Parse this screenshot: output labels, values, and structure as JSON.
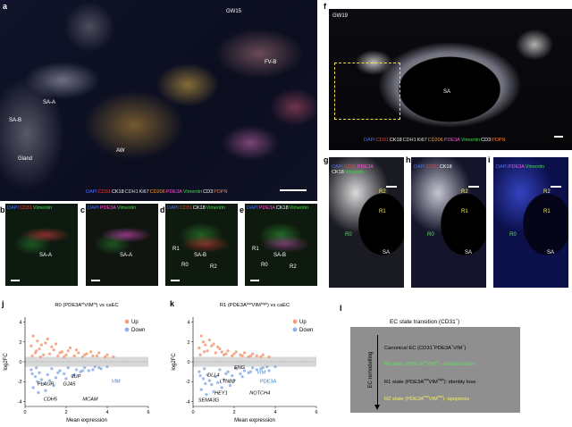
{
  "colors": {
    "dapi": "#4a6cff",
    "cd31": "#ff3b3b",
    "ck18": "#ffffff",
    "cdh1": "#dcdcdc",
    "ki67": "#e0e0e0",
    "cd206": "#ff9a2e",
    "pde3a": "#ff4fd8",
    "vimentin": "#43d94b",
    "cd3": "#ffffff",
    "pdpn": "#ff7a3a",
    "up": "#f2a07b",
    "down": "#8fb0e6",
    "blue_gene": "#3a7bd5",
    "state_box": "#8f8f8f",
    "r0_text": "#5ee35e",
    "r2_text": "#f6f05a"
  },
  "panel_a": {
    "letter": "a",
    "stage": "GW15",
    "labels": [
      "FV-B",
      "SA-A",
      "SA-B",
      "AW",
      "Gland"
    ],
    "legend": [
      {
        "t": "DAPI",
        "c": "dapi"
      },
      {
        "t": "CD31",
        "c": "cd31"
      },
      {
        "t": "CK18",
        "c": "ck18"
      },
      {
        "t": "CDH1",
        "c": "cdh1"
      },
      {
        "t": "Ki67",
        "c": "ki67"
      },
      {
        "t": "CD206",
        "c": "cd206"
      },
      {
        "t": "PDE3A",
        "c": "pde3a"
      },
      {
        "t": "Vimentin",
        "c": "vimentin"
      },
      {
        "t": "CD3",
        "c": "cd3"
      },
      {
        "t": "PDPN",
        "c": "pdpn"
      }
    ]
  },
  "panel_f": {
    "letter": "f",
    "stage": "GW19",
    "label": "SA",
    "legend1": [
      {
        "t": "DAPI",
        "c": "dapi"
      },
      {
        "t": "CD31",
        "c": "cd31"
      },
      {
        "t": "CK18",
        "c": "ck18"
      },
      {
        "t": "CDH1",
        "c": "cdh1"
      },
      {
        "t": "Ki67",
        "c": "ki67"
      },
      {
        "t": "CD206",
        "c": "cd206"
      },
      {
        "t": "PDE3A",
        "c": "pde3a"
      },
      {
        "t": "Vimentin",
        "c": "vimentin"
      },
      {
        "t": "CD3",
        "c": "cd3"
      },
      {
        "t": "PDPN",
        "c": "pdpn"
      }
    ]
  },
  "small_panels": [
    {
      "letter": "b",
      "legend": [
        {
          "t": "DAPI",
          "c": "dapi"
        },
        {
          "t": "CD31",
          "c": "cd31"
        },
        {
          "t": "Vimentin",
          "c": "vimentin"
        }
      ],
      "labels": [
        "SA-A"
      ]
    },
    {
      "letter": "c",
      "legend": [
        {
          "t": "DAPI",
          "c": "dapi"
        },
        {
          "t": "PDE3A",
          "c": "pde3a"
        },
        {
          "t": "Vimentin",
          "c": "vimentin"
        }
      ],
      "labels": [
        "SA-A"
      ]
    },
    {
      "letter": "d",
      "legend": [
        {
          "t": "DAPI",
          "c": "dapi"
        },
        {
          "t": "CD31",
          "c": "cd31"
        },
        {
          "t": "CK18",
          "c": "ck18"
        },
        {
          "t": "Vimentin",
          "c": "vimentin"
        }
      ],
      "labels": [
        "R1",
        "SA-B",
        "R0",
        "R2"
      ]
    },
    {
      "letter": "e",
      "legend": [
        {
          "t": "DAPI",
          "c": "dapi"
        },
        {
          "t": "PDE3A",
          "c": "pde3a"
        },
        {
          "t": "CK18",
          "c": "ck18"
        },
        {
          "t": "Vimentin",
          "c": "vimentin"
        }
      ],
      "labels": [
        "R1",
        "SA-B",
        "R0",
        "R2"
      ]
    }
  ],
  "zoom_panels": [
    {
      "letter": "g",
      "legend": [
        {
          "t": "DAPI",
          "c": "dapi"
        },
        {
          "t": "CD31",
          "c": "cd31"
        },
        {
          "t": "PDE3A",
          "c": "pde3a"
        }
      ],
      "legend2": [
        {
          "t": "CK18",
          "c": "ck18"
        },
        {
          "t": "Vimentin",
          "c": "vimentin"
        }
      ],
      "labels": [
        "R2",
        "R1",
        "R0",
        "SA"
      ]
    },
    {
      "letter": "h",
      "legend": [
        {
          "t": "DAPI",
          "c": "dapi"
        },
        {
          "t": "CD31",
          "c": "cd31"
        },
        {
          "t": "CK18",
          "c": "ck18"
        }
      ],
      "legend2": [],
      "labels": [
        "R2",
        "R1",
        "R0",
        "SA"
      ]
    },
    {
      "letter": "i",
      "legend": [
        {
          "t": "DAPI",
          "c": "dapi"
        },
        {
          "t": "PDE3A",
          "c": "pde3a"
        },
        {
          "t": "Vimentin",
          "c": "vimentin"
        }
      ],
      "legend2": [],
      "labels": [
        "R2",
        "R1",
        "R0",
        "SA"
      ]
    }
  ],
  "chart_data": [
    {
      "type": "scatter",
      "panel": "j",
      "title": "R0 (PDE3A",
      "title_parts": [
        "R0 (PDE3A",
        "hi",
        "VIM",
        "hi",
        ") vs caEC"
      ],
      "xlabel": "Mean expression",
      "ylabel": "log2FC",
      "xlim": [
        0,
        6
      ],
      "ylim": [
        -4.5,
        4.5
      ],
      "xticks": [
        0,
        2,
        4,
        6
      ],
      "yticks": [
        -4,
        -2,
        0,
        2,
        4
      ],
      "legend": [
        "Up",
        "Down"
      ],
      "legend_placement": "top-right",
      "series": [
        {
          "name": "Up",
          "color": "up",
          "points": [
            [
              0.3,
              1.6
            ],
            [
              0.5,
              0.9
            ],
            [
              0.7,
              1.3
            ],
            [
              0.9,
              0.7
            ],
            [
              1.0,
              1.9
            ],
            [
              1.2,
              0.8
            ],
            [
              1.4,
              1.2
            ],
            [
              1.6,
              0.6
            ],
            [
              1.8,
              1.0
            ],
            [
              2.0,
              0.7
            ],
            [
              2.2,
              1.4
            ],
            [
              2.4,
              0.6
            ],
            [
              2.6,
              0.9
            ],
            [
              2.8,
              0.5
            ],
            [
              3.0,
              0.8
            ],
            [
              3.3,
              0.6
            ],
            [
              3.6,
              0.9
            ],
            [
              3.9,
              0.5
            ],
            [
              0.4,
              2.6
            ],
            [
              0.6,
              2.1
            ],
            [
              0.8,
              1.7
            ],
            [
              1.1,
              2.3
            ],
            [
              1.3,
              1.5
            ],
            [
              1.5,
              1.8
            ],
            [
              1.7,
              0.9
            ],
            [
              2.1,
              1.1
            ],
            [
              2.5,
              1.2
            ],
            [
              2.9,
              0.7
            ],
            [
              3.2,
              1.0
            ],
            [
              3.5,
              0.6
            ],
            [
              4.0,
              0.7
            ],
            [
              4.3,
              0.5
            ],
            [
              0.35,
              0.6
            ],
            [
              0.55,
              1.1
            ],
            [
              0.75,
              0.5
            ],
            [
              1.9,
              0.5
            ]
          ]
        },
        {
          "name": "Down",
          "color": "down",
          "points": [
            [
              0.3,
              -0.8
            ],
            [
              0.5,
              -1.5
            ],
            [
              0.7,
              -1.1
            ],
            [
              0.9,
              -2.2
            ],
            [
              1.1,
              -1.3
            ],
            [
              1.3,
              -0.7
            ],
            [
              1.5,
              -1.6
            ],
            [
              1.7,
              -0.9
            ],
            [
              1.9,
              -1.2
            ],
            [
              2.1,
              -0.6
            ],
            [
              2.3,
              -1.4
            ],
            [
              2.5,
              -0.8
            ],
            [
              2.7,
              -1.0
            ],
            [
              2.9,
              -0.6
            ],
            [
              3.1,
              -0.9
            ],
            [
              3.4,
              -0.5
            ],
            [
              3.7,
              -0.7
            ],
            [
              4.0,
              -0.5
            ],
            [
              0.4,
              -2.6
            ],
            [
              0.6,
              -2.0
            ],
            [
              0.8,
              -1.8
            ],
            [
              1.0,
              -2.9
            ],
            [
              1.2,
              -1.9
            ],
            [
              1.4,
              -2.4
            ],
            [
              1.6,
              -1.1
            ],
            [
              2.0,
              -1.7
            ],
            [
              2.4,
              -1.3
            ],
            [
              2.8,
              -0.9
            ],
            [
              3.3,
              -0.8
            ],
            [
              3.6,
              -0.6
            ],
            [
              0.35,
              -1.2
            ],
            [
              0.55,
              -0.6
            ],
            [
              0.65,
              -3.1
            ]
          ]
        }
      ],
      "annotations": [
        {
          "text": "PLAUR",
          "x": 0.6,
          "y": -2.4,
          "color": "#000000"
        },
        {
          "text": "JUP",
          "x": 2.25,
          "y": -1.6,
          "color": "#000000"
        },
        {
          "text": "GJA5",
          "x": 1.85,
          "y": -2.4,
          "color": "#000000"
        },
        {
          "text": "CDH5",
          "x": 0.9,
          "y": -3.9,
          "color": "#000000"
        },
        {
          "text": "MCAM",
          "x": 2.8,
          "y": -3.9,
          "color": "#000000"
        },
        {
          "text": "VIM",
          "x": 4.2,
          "y": -2.1,
          "color": "#3a7bd5"
        }
      ]
    },
    {
      "type": "scatter",
      "panel": "k",
      "title": "R1 (PDE3A",
      "title_parts": [
        "R1 (PDE3A",
        "low",
        "VIM",
        "high",
        ") vs caEC"
      ],
      "xlabel": "Mean expression",
      "ylabel": "log2FC",
      "xlim": [
        0,
        6
      ],
      "ylim": [
        -4.5,
        4.5
      ],
      "xticks": [
        0,
        2,
        4,
        6
      ],
      "yticks": [
        -4,
        -2,
        0,
        2,
        4
      ],
      "legend": [
        "Up",
        "Down"
      ],
      "legend_placement": "top-right",
      "series": [
        {
          "name": "Up",
          "color": "up",
          "points": [
            [
              0.3,
              1.4
            ],
            [
              0.5,
              2.0
            ],
            [
              0.7,
              1.1
            ],
            [
              0.9,
              1.6
            ],
            [
              1.1,
              0.9
            ],
            [
              1.3,
              1.3
            ],
            [
              1.5,
              0.7
            ],
            [
              1.7,
              1.1
            ],
            [
              1.9,
              0.6
            ],
            [
              2.1,
              1.0
            ],
            [
              2.3,
              0.7
            ],
            [
              2.5,
              0.9
            ],
            [
              2.7,
              0.5
            ],
            [
              2.9,
              0.8
            ],
            [
              3.1,
              0.6
            ],
            [
              3.4,
              0.7
            ],
            [
              3.7,
              0.5
            ],
            [
              0.4,
              2.6
            ],
            [
              0.6,
              1.7
            ],
            [
              0.8,
              2.2
            ],
            [
              1.0,
              1.8
            ],
            [
              1.2,
              1.5
            ],
            [
              1.4,
              1.0
            ],
            [
              1.6,
              0.8
            ],
            [
              2.0,
              0.8
            ],
            [
              2.4,
              0.6
            ],
            [
              2.8,
              0.6
            ],
            [
              3.3,
              0.5
            ],
            [
              0.35,
              0.7
            ],
            [
              0.55,
              1.0
            ]
          ]
        },
        {
          "name": "Down",
          "color": "down",
          "points": [
            [
              0.3,
              -1.0
            ],
            [
              0.5,
              -1.7
            ],
            [
              0.7,
              -1.3
            ],
            [
              0.9,
              -2.3
            ],
            [
              1.1,
              -1.5
            ],
            [
              1.3,
              -0.8
            ],
            [
              1.5,
              -1.8
            ],
            [
              1.7,
              -1.0
            ],
            [
              1.9,
              -1.4
            ],
            [
              2.1,
              -0.7
            ],
            [
              2.3,
              -1.2
            ],
            [
              2.5,
              -0.9
            ],
            [
              2.7,
              -1.1
            ],
            [
              2.9,
              -0.6
            ],
            [
              3.1,
              -0.8
            ],
            [
              3.4,
              -0.6
            ],
            [
              3.7,
              -0.9
            ],
            [
              4.0,
              -0.5
            ],
            [
              0.4,
              -2.8
            ],
            [
              0.6,
              -2.2
            ],
            [
              0.8,
              -1.9
            ],
            [
              1.0,
              -3.0
            ],
            [
              1.2,
              -2.1
            ],
            [
              1.4,
              -2.6
            ],
            [
              1.6,
              -1.2
            ],
            [
              2.0,
              -1.9
            ],
            [
              2.4,
              -1.5
            ],
            [
              2.8,
              -1.0
            ],
            [
              3.3,
              -0.7
            ],
            [
              3.6,
              -0.5
            ],
            [
              0.35,
              -1.4
            ],
            [
              0.55,
              -0.7
            ],
            [
              0.65,
              -3.3
            ],
            [
              1.8,
              -2.4
            ]
          ]
        }
      ],
      "annotations": [
        {
          "text": "ENG",
          "x": 2.0,
          "y": -0.7,
          "color": "#000000"
        },
        {
          "text": "VIM",
          "x": 3.1,
          "y": -1.2,
          "color": "#3a7bd5"
        },
        {
          "text": "DLL4",
          "x": 0.7,
          "y": -1.5,
          "color": "#000000"
        },
        {
          "text": "LTNB2",
          "x": 1.3,
          "y": -2.1,
          "color": "#000000"
        },
        {
          "text": "PDE3A",
          "x": 3.25,
          "y": -2.1,
          "color": "#3a7bd5"
        },
        {
          "text": "HEY1",
          "x": 1.05,
          "y": -3.3,
          "color": "#000000"
        },
        {
          "text": "NOTCH4",
          "x": 2.75,
          "y": -3.3,
          "color": "#000000"
        },
        {
          "text": "SEMA3G",
          "x": 0.25,
          "y": -4.0,
          "color": "#000000"
        }
      ]
    }
  ],
  "panel_l": {
    "letter": "l",
    "title": "EC state transition (CD31",
    "title_sup": "+",
    "title_end": ")",
    "axis_label": "EC remodelling",
    "states": [
      {
        "text": "Canonical EC (CD31",
        "sup1": "+",
        "mid": "PDE3A",
        "sup2": "+",
        "mid2": "VIM",
        "sup3": "+",
        "end": ")",
        "color": "#000000"
      },
      {
        "text": "R0 state (PDE3A",
        "sup1": "hi",
        "mid": "VIM",
        "sup2": "hi",
        "end": "): destabilization",
        "color": "r0_text"
      },
      {
        "text": "R1 state (PDE3A",
        "sup1": "low",
        "mid": "VIM",
        "sup2": "high",
        "end": "): identity lose",
        "color": "#000000"
      },
      {
        "text": "R2 state (PDE3A",
        "sup1": "low",
        "mid": "VIM",
        "sup2": "low",
        "end": "): apoptosis",
        "color": "r2_text"
      }
    ]
  }
}
